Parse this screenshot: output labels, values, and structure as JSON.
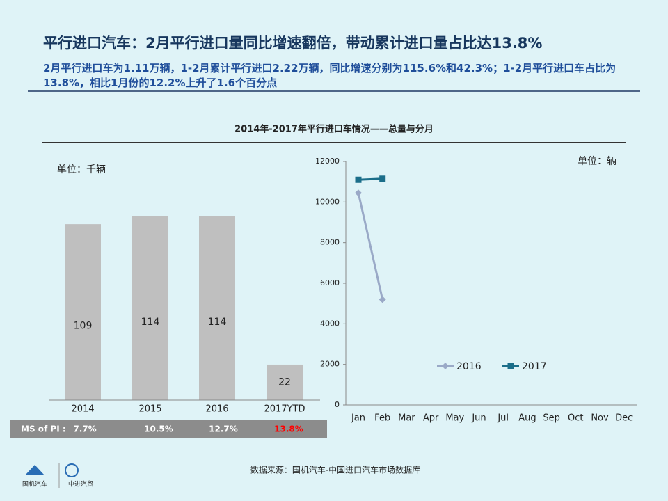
{
  "header": {
    "title": "平行进口汽车：2月平行进口量同比增速翻倍，带动累计进口量占比达13.8%",
    "subtitle": "2月平行进口车为1.11万辆，1-2月累计平行进口2.22万辆，同比增速分别为115.6%和42.3%；1-2月平行进口车占比为13.8%，相比1月份的12.2%上升了1.6个百分点"
  },
  "section_title": "2014年-2017年平行进口车情况——总量与分月",
  "chart_data": [
    {
      "type": "bar",
      "unit": "单位：千辆",
      "categories": [
        "2014",
        "2015",
        "2016",
        "2017YTD"
      ],
      "values": [
        109,
        114,
        114,
        22
      ],
      "color": "#bfbfbf",
      "share_label": "MS of PI :",
      "share_values": [
        "7.7%",
        "10.5%",
        "12.7%",
        "13.8%"
      ]
    },
    {
      "type": "line",
      "unit": "单位：辆",
      "categories": [
        "Jan",
        "Feb",
        "Mar",
        "Apr",
        "May",
        "Jun",
        "Jul",
        "Aug",
        "Sep",
        "Oct",
        "Nov",
        "Dec"
      ],
      "series": [
        {
          "name": "2016",
          "color": "#9aa9c7",
          "marker": "diamond",
          "values": [
            10450,
            5200,
            null,
            null,
            null,
            null,
            null,
            null,
            null,
            null,
            null,
            null
          ]
        },
        {
          "name": "2017",
          "color": "#1b6e8a",
          "marker": "square",
          "values": [
            11100,
            11150,
            null,
            null,
            null,
            null,
            null,
            null,
            null,
            null,
            null,
            null
          ]
        }
      ],
      "ylim": [
        0,
        12000
      ],
      "yticks": [
        0,
        2000,
        4000,
        6000,
        8000,
        10000,
        12000
      ]
    }
  ],
  "source": "数据来源：国机汽车-中国进口汽车市场数据库",
  "logos": [
    "国机汽车",
    "中进汽贸"
  ]
}
